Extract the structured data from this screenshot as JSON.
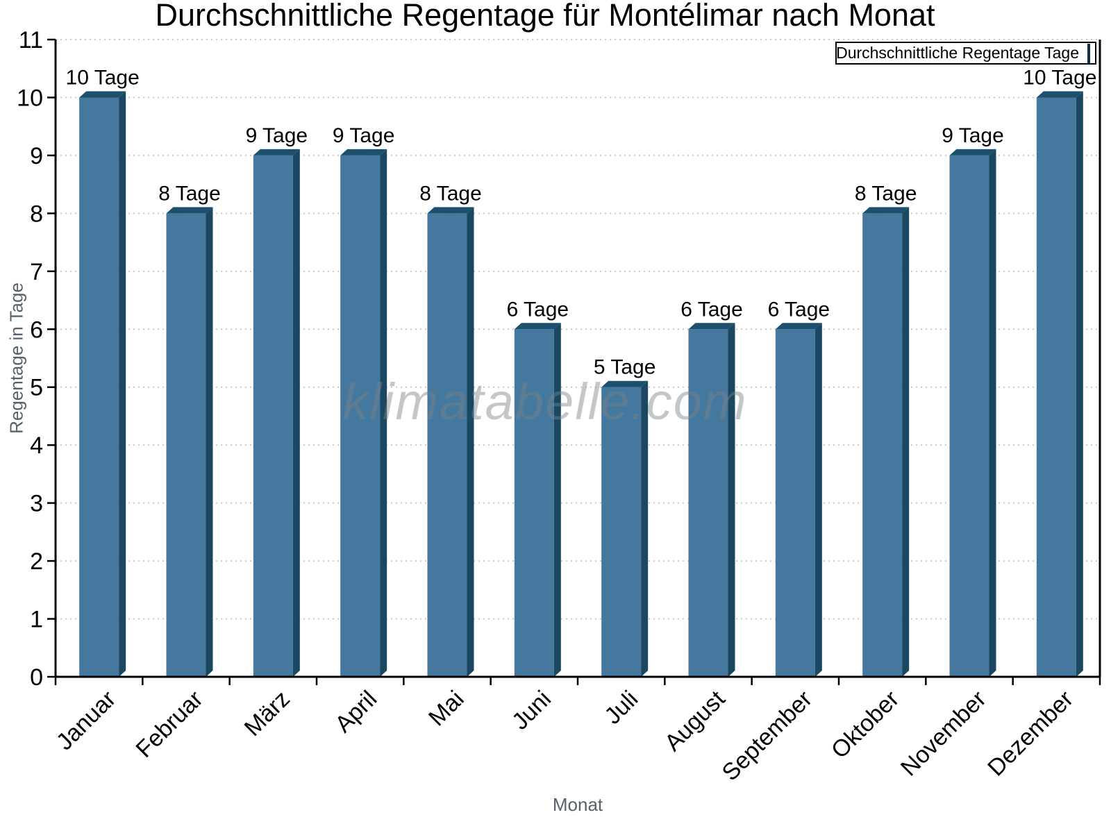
{
  "title": "Durchschnittliche Regentage für Montélimar nach Monat",
  "legend": {
    "label": "Durchschnittliche Regentage Tage",
    "swatch": "blue-square"
  },
  "watermark": "klimatabelle.com",
  "axis_titles": {
    "x": "Monat",
    "y": "Regentage in Tage"
  },
  "colors": {
    "bar_face": "#44789e",
    "bar_top": "#1d4f6f",
    "bar_side": "#1b4761",
    "grid": "#c8c8c8",
    "axis": "#000000",
    "text": "#000000",
    "muted_text": "#57616d"
  },
  "chart_data": {
    "type": "bar",
    "title": "Durchschnittliche Regentage für Montélimar nach Monat",
    "categories": [
      "Januar",
      "Februar",
      "März",
      "April",
      "Mai",
      "Juni",
      "Juli",
      "August",
      "September",
      "Oktober",
      "November",
      "Dezember"
    ],
    "values": [
      10,
      8,
      9,
      9,
      8,
      6,
      5,
      6,
      6,
      8,
      9,
      10
    ],
    "value_labels": [
      "10 Tage",
      "8 Tage",
      "9 Tage",
      "9 Tage",
      "8 Tage",
      "6 Tage",
      "5 Tage",
      "6 Tage",
      "6 Tage",
      "8 Tage",
      "9 Tage",
      "10 Tage"
    ],
    "value_label_suffix": " Tage",
    "series_name": "Durchschnittliche Regentage Tage",
    "xlabel": "Monat",
    "ylabel": "Regentage in Tage",
    "ylim": [
      0,
      11
    ],
    "ytick_step": 1,
    "yticks": [
      0,
      1,
      2,
      3,
      4,
      5,
      6,
      7,
      8,
      9,
      10,
      11
    ],
    "grid": "horizontal-dotted",
    "legend_position": "top-right",
    "bar_style": "3d-bevel"
  }
}
